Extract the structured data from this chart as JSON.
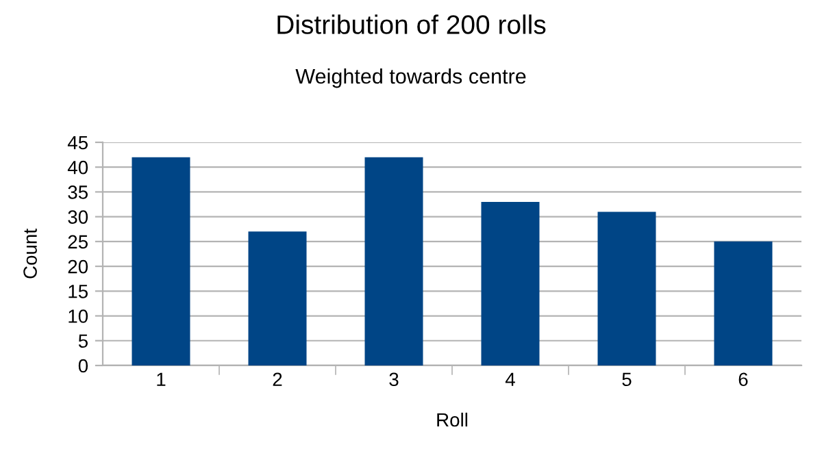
{
  "chart_data": {
    "type": "bar",
    "title": "Distribution of 200 rolls",
    "subtitle": "Weighted towards centre",
    "xlabel": "Roll",
    "ylabel": "Count",
    "categories": [
      "1",
      "2",
      "3",
      "4",
      "5",
      "6"
    ],
    "values": [
      42,
      27,
      42,
      33,
      31,
      25
    ],
    "color": "#004586",
    "ylim": [
      0,
      45
    ],
    "yticks": [
      0,
      5,
      10,
      15,
      20,
      25,
      30,
      35,
      40,
      45
    ],
    "grid": "y"
  }
}
